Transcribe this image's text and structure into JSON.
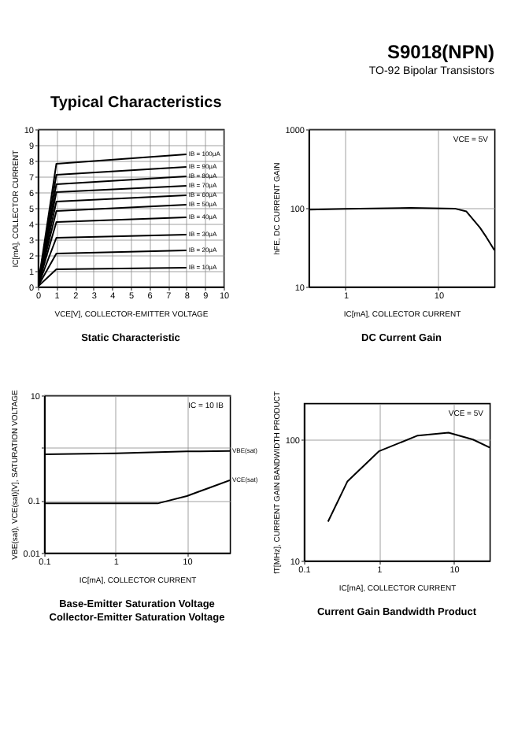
{
  "chart_data": [
    {
      "type": "other",
      "title": "S9018(NPN)",
      "subtitle": "TO-92 Bipolar Transistors",
      "annotations": [
        "Typical Characteristics"
      ]
    },
    {
      "type": "line",
      "title": "Static Characteristic",
      "xlabel": "VCE[V], COLLECTOR-EMITTER VOLTAGE",
      "ylabel": "IC[mA], COLLECTOR CURRENT",
      "xlim": [
        0,
        10
      ],
      "xticks": [
        0,
        1,
        2,
        3,
        4,
        5,
        6,
        7,
        8,
        9,
        10
      ],
      "ylim": [
        0,
        10
      ],
      "yticks": [
        0,
        1,
        2,
        3,
        4,
        5,
        6,
        7,
        8,
        9,
        10
      ],
      "grid": true,
      "series": [
        {
          "name": "IB = 100μA",
          "color": "#000000",
          "x": [
            0,
            1,
            8
          ],
          "values": [
            0,
            7.8,
            8.4
          ]
        },
        {
          "name": "IB = 90μA",
          "color": "#000000",
          "x": [
            0,
            1,
            8
          ],
          "values": [
            0,
            7.1,
            7.6
          ]
        },
        {
          "name": "IB = 80μA",
          "color": "#000000",
          "x": [
            0,
            1,
            8
          ],
          "values": [
            0,
            6.5,
            7.0
          ]
        },
        {
          "name": "IB = 70μA",
          "color": "#000000",
          "x": [
            0,
            1,
            8
          ],
          "values": [
            0,
            6.0,
            6.4
          ]
        },
        {
          "name": "IB = 60μA",
          "color": "#000000",
          "x": [
            0,
            1,
            8
          ],
          "values": [
            0,
            5.4,
            5.8
          ]
        },
        {
          "name": "IB = 50μA",
          "color": "#000000",
          "x": [
            0,
            1,
            8
          ],
          "values": [
            0,
            4.8,
            5.2
          ]
        },
        {
          "name": "IB = 40μA",
          "color": "#000000",
          "x": [
            0,
            1,
            8
          ],
          "values": [
            0,
            4.1,
            4.4
          ]
        },
        {
          "name": "IB = 30μA",
          "color": "#000000",
          "x": [
            0,
            1,
            8
          ],
          "values": [
            0,
            3.1,
            3.3
          ]
        },
        {
          "name": "IB = 20μA",
          "color": "#000000",
          "x": [
            0,
            1,
            8
          ],
          "values": [
            0,
            2.1,
            2.3
          ]
        },
        {
          "name": "IB = 10μA",
          "color": "#000000",
          "x": [
            0,
            1,
            8
          ],
          "values": [
            0,
            1.1,
            1.2
          ]
        }
      ]
    },
    {
      "type": "line",
      "title": "DC Current Gain",
      "xlabel": "IC[mA], COLLECTOR CURRENT",
      "ylabel": "hFE, DC CURRENT GAIN",
      "log": "xy",
      "xlim": [
        0.4,
        40
      ],
      "xticks": [
        1,
        10
      ],
      "ylim": [
        10,
        1000
      ],
      "yticks": [
        10,
        100,
        1000
      ],
      "grid": true,
      "annotations": [
        "VCE = 5V"
      ],
      "series": [
        {
          "color": "#000000",
          "x": [
            0.4,
            1,
            5,
            15,
            20,
            28,
            33,
            40
          ],
          "values": [
            95,
            97,
            100,
            98,
            90,
            56,
            42,
            29
          ]
        }
      ]
    },
    {
      "type": "line",
      "title": "Base-Emitter Saturation Voltage\nCollector-Emitter Saturation Voltage",
      "xlabel": "IC[mA], COLLECTOR CURRENT",
      "ylabel": "VBE(sat), VCE(sat)[V], SATURATION VOLTAGE",
      "log": "xy",
      "xlim": [
        0.1,
        40
      ],
      "xticks": [
        0.1,
        1,
        10
      ],
      "ylim": [
        0.01,
        10
      ],
      "yticks": [
        0.01,
        0.1,
        {
          "value": 1,
          "label": null
        },
        10
      ],
      "grid": true,
      "annotations": [
        "IC = 10 IB"
      ],
      "series": [
        {
          "name": "VBE(sat)",
          "color": "#000000",
          "x": [
            0.1,
            1,
            10,
            40
          ],
          "values": [
            0.75,
            0.78,
            0.85,
            0.87
          ]
        },
        {
          "name": "VCE(sat)",
          "color": "#000000",
          "x": [
            0.1,
            1,
            3.9,
            10,
            20,
            40
          ],
          "values": [
            0.087,
            0.087,
            0.087,
            0.12,
            0.17,
            0.24
          ]
        }
      ]
    },
    {
      "type": "line",
      "title": "Current Gain Bandwidth Product",
      "xlabel": "IC[mA], COLLECTOR CURRENT",
      "ylabel": "fT[MHz], CURRENT GAIN BANDWIDTH PRODUCT",
      "log": "xy",
      "xlim": [
        0.1,
        30
      ],
      "xticks": [
        0.1,
        1,
        10
      ],
      "ylim": [
        10,
        200
      ],
      "yticks": [
        10,
        100
      ],
      "grid": true,
      "annotations": [
        "VCE = 5V"
      ],
      "series": [
        {
          "color": "#000000",
          "x": [
            0.21,
            0.38,
            1,
            3.3,
            8.5,
            18,
            30
          ],
          "values": [
            21,
            45,
            80,
            108,
            114,
            100,
            86
          ]
        }
      ]
    }
  ]
}
